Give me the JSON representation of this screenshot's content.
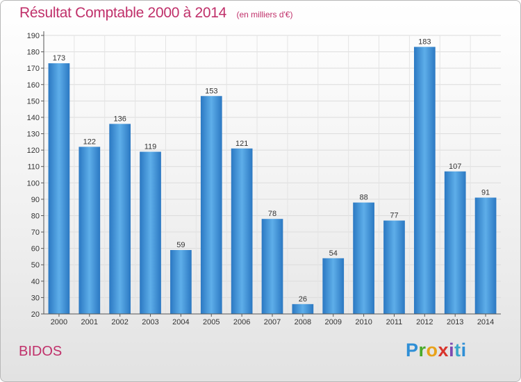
{
  "header": {
    "title": "Résultat Comptable 2000 à 2014",
    "unit": "(en milliers d'€)"
  },
  "footer": {
    "place": "BIDOS",
    "logo": [
      "P",
      "r",
      "o",
      "x",
      "i",
      "t",
      "i"
    ]
  },
  "chart_data": {
    "type": "bar",
    "title": "Résultat Comptable 2000 à 2014",
    "subtitle": "(en milliers d'€)",
    "categories": [
      "2000",
      "2001",
      "2002",
      "2003",
      "2004",
      "2005",
      "2006",
      "2007",
      "2008",
      "2009",
      "2010",
      "2011",
      "2012",
      "2013",
      "2014"
    ],
    "values": [
      173,
      122,
      136,
      119,
      59,
      153,
      121,
      78,
      26,
      54,
      88,
      77,
      183,
      107,
      91
    ],
    "ylim": [
      20,
      190
    ],
    "yticks": [
      20,
      30,
      40,
      50,
      60,
      70,
      80,
      90,
      100,
      110,
      120,
      130,
      140,
      150,
      160,
      170,
      180,
      190
    ],
    "grid": true,
    "bar_color": "#3a8fd4"
  }
}
